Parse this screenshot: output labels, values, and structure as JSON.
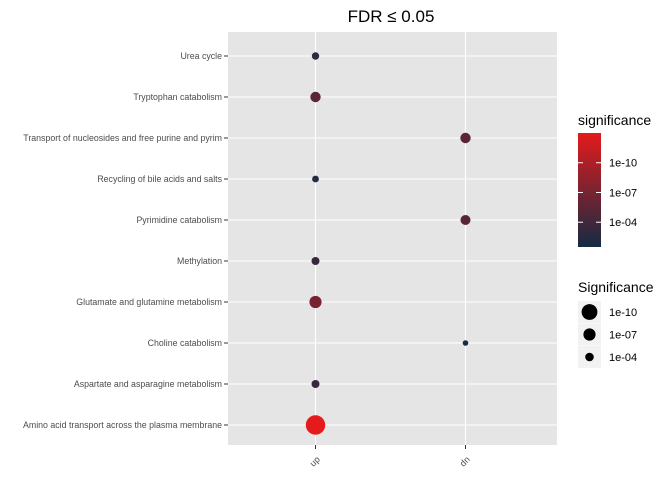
{
  "chart_data": {
    "type": "scatter",
    "title": "FDR ≤ 0.05",
    "xlabel": "",
    "ylabel": "",
    "x_categories": [
      "up",
      "dn"
    ],
    "y_categories": [
      "Urea cycle",
      "Tryptophan catabolism",
      "Transport of nucleosides and free purine and pyrim",
      "Recycling of bile acids and salts",
      "Pyrimidine catabolism",
      "Methylation",
      "Glutamate and glutamine metabolism",
      "Choline catabolism",
      "Aspartate and asparagine metabolism",
      "Amino acid transport across the plasma membrane"
    ],
    "points": [
      {
        "x": "up",
        "y": "Urea cycle",
        "neg_log10_p": 3
      },
      {
        "x": "up",
        "y": "Tryptophan catabolism",
        "neg_log10_p": 5.5
      },
      {
        "x": "dn",
        "y": "Transport of nucleosides and free purine and pyrim",
        "neg_log10_p": 5.5
      },
      {
        "x": "up",
        "y": "Recycling of bile acids and salts",
        "neg_log10_p": 2.5
      },
      {
        "x": "dn",
        "y": "Pyrimidine catabolism",
        "neg_log10_p": 5.2
      },
      {
        "x": "up",
        "y": "Methylation",
        "neg_log10_p": 3.5
      },
      {
        "x": "up",
        "y": "Glutamate and glutamine metabolism",
        "neg_log10_p": 7
      },
      {
        "x": "dn",
        "y": "Choline catabolism",
        "neg_log10_p": 1.5
      },
      {
        "x": "up",
        "y": "Aspartate and asparagine metabolism",
        "neg_log10_p": 3.5
      },
      {
        "x": "up",
        "y": "Amino acid transport across the plasma membrane",
        "neg_log10_p": 13
      }
    ],
    "color_legend": {
      "title": "significance",
      "breaks": [
        "1e-10",
        "1e-07",
        "1e-04"
      ],
      "break_values": [
        10,
        7,
        4
      ],
      "range": [
        1.5,
        13
      ],
      "low_color": "#132B43",
      "high_color": "#E41A1C"
    },
    "size_legend": {
      "title": "Significance",
      "breaks": [
        "1e-10",
        "1e-07",
        "1e-04"
      ],
      "break_values": [
        10,
        7,
        4
      ]
    },
    "panel_background": "#E5E5E5",
    "grid": true,
    "legend_position": "right"
  }
}
